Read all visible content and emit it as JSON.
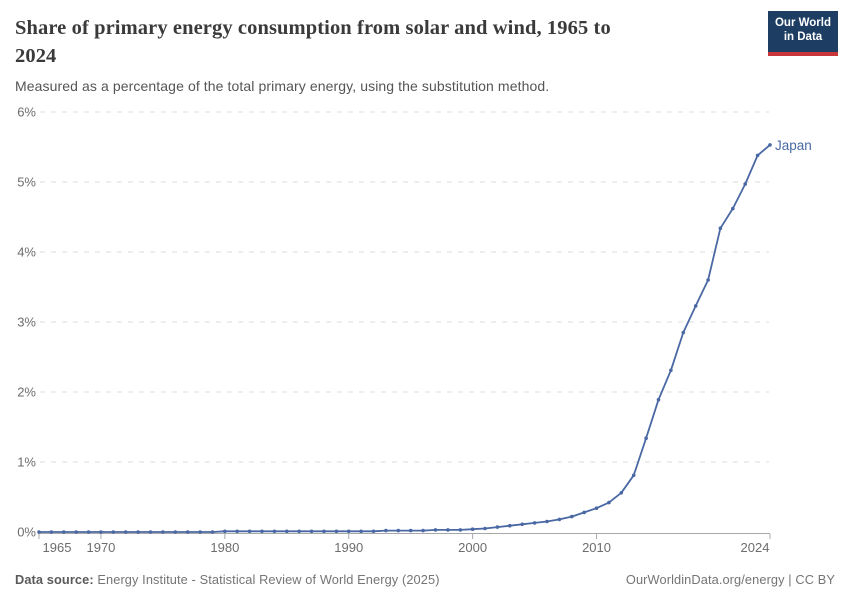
{
  "header": {
    "title": "Share of primary energy consumption from solar and wind, 1965 to 2024",
    "title_lines": [
      "Share of primary energy consumption from solar and wind, 1965 to",
      "2024"
    ],
    "subtitle": "Measured as a percentage of the total primary energy, using the substitution method.",
    "logo": {
      "line1": "Our World",
      "line2": "in Data",
      "bg_color": "#1d3d63",
      "accent_color": "#c93639"
    }
  },
  "footer": {
    "source_label": "Data source:",
    "source_text": "Energy Institute - Statistical Review of World Energy (2025)",
    "credit": "OurWorldinData.org/energy | CC BY"
  },
  "chart_data": {
    "type": "line",
    "title": "Share of primary energy consumption from solar and wind, 1965 to 2024",
    "unit": "%",
    "ylim": [
      0,
      6
    ],
    "grid": "horizontal-dashed",
    "legend_position": "end-of-line-label",
    "x": [
      1965,
      1966,
      1967,
      1968,
      1969,
      1970,
      1971,
      1972,
      1973,
      1974,
      1975,
      1976,
      1977,
      1978,
      1979,
      1980,
      1981,
      1982,
      1983,
      1984,
      1985,
      1986,
      1987,
      1988,
      1989,
      1990,
      1991,
      1992,
      1993,
      1994,
      1995,
      1996,
      1997,
      1998,
      1999,
      2000,
      2001,
      2002,
      2003,
      2004,
      2005,
      2006,
      2007,
      2008,
      2009,
      2010,
      2011,
      2012,
      2013,
      2014,
      2015,
      2016,
      2017,
      2018,
      2019,
      2020,
      2021,
      2022,
      2023,
      2024
    ],
    "series": [
      {
        "name": "Japan",
        "color": "#4a68a3",
        "values": [
          0,
          0,
          0,
          0,
          0,
          0,
          0,
          0,
          0,
          0,
          0,
          0,
          0,
          0,
          0,
          0.01,
          0.01,
          0.01,
          0.01,
          0.01,
          0.01,
          0.01,
          0.01,
          0.01,
          0.01,
          0.01,
          0.01,
          0.01,
          0.02,
          0.02,
          0.02,
          0.02,
          0.03,
          0.03,
          0.03,
          0.04,
          0.05,
          0.07,
          0.09,
          0.11,
          0.13,
          0.15,
          0.18,
          0.22,
          0.28,
          0.34,
          0.42,
          0.56,
          0.81,
          1.34,
          1.89,
          2.31,
          2.85,
          3.23,
          3.6,
          4.34,
          4.62,
          4.97,
          5.38,
          5.53
        ]
      }
    ],
    "xticks": [
      1965,
      1970,
      1980,
      1990,
      2000,
      2010,
      2024
    ],
    "yticks": [
      {
        "value": 0,
        "label": "0%"
      },
      {
        "value": 1,
        "label": "1%"
      },
      {
        "value": 2,
        "label": "2%"
      },
      {
        "value": 3,
        "label": "3%"
      },
      {
        "value": 4,
        "label": "4%"
      },
      {
        "value": 5,
        "label": "5%"
      },
      {
        "value": 6,
        "label": "6%"
      }
    ],
    "colors": {
      "grid": "#dcdcdc",
      "axis_line": "#a8a8a8",
      "axis_text": "#6d6d6d"
    }
  }
}
